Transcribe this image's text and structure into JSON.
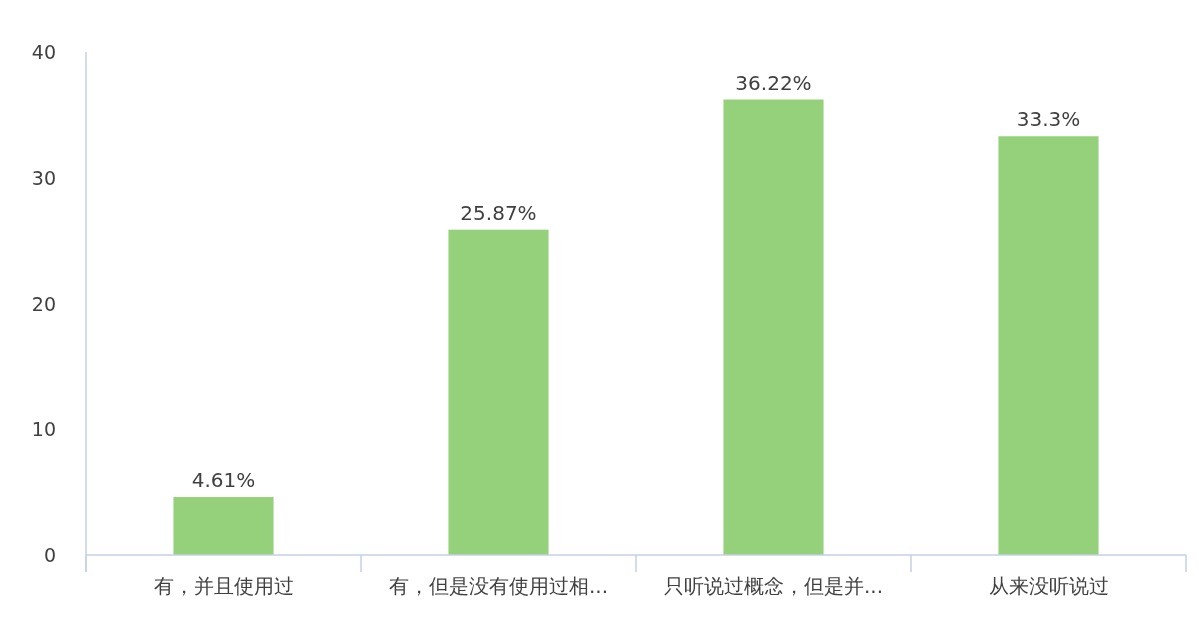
{
  "chart_data": {
    "type": "bar",
    "categories": [
      "有，并且使用过",
      "有，但是没有使用过相...",
      "只听说过概念，但是并...",
      "从来没听说过"
    ],
    "values": [
      4.61,
      25.87,
      36.22,
      33.3
    ],
    "value_labels": [
      "4.61%",
      "25.87%",
      "36.22%",
      "33.3%"
    ],
    "color": "#95d07a",
    "ylim": [
      0,
      40
    ],
    "yticks": [
      0,
      10,
      20,
      30,
      40
    ],
    "grid": false
  }
}
